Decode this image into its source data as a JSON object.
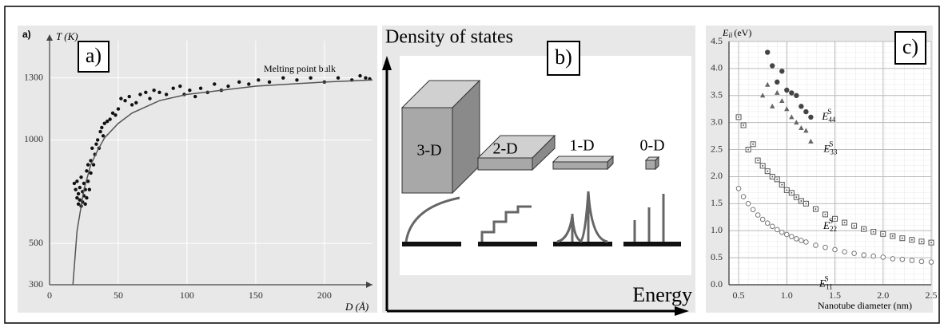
{
  "chart_data": [
    {
      "type": "scatter",
      "panel_label": "a)",
      "figure_label": "a)",
      "y_label": "T (K)",
      "x_label": "D (Å)",
      "annotation": "Melting point bulk",
      "xlim": [
        0,
        235
      ],
      "ylim": [
        300,
        1480
      ],
      "xticks": [
        0,
        50,
        100,
        150,
        200
      ],
      "yticks": [
        300,
        500,
        1000,
        1300
      ],
      "grid": true,
      "series": [
        {
          "marker": "dot",
          "color": "#111111",
          "x": [
            18,
            19,
            20,
            20,
            21,
            21,
            22,
            22,
            23,
            23,
            24,
            24,
            25,
            25,
            26,
            26,
            27,
            27,
            28,
            28,
            29,
            30,
            30,
            31,
            32,
            33,
            34,
            35,
            36,
            37,
            38,
            39,
            40,
            42,
            44,
            46,
            48,
            50,
            52,
            55,
            58,
            60,
            63,
            66,
            70,
            73,
            76,
            80,
            85,
            90,
            95,
            98,
            102,
            106,
            110,
            115,
            120,
            125,
            130,
            138,
            145,
            152,
            160,
            170,
            180,
            190,
            200,
            210,
            220,
            226,
            230,
            233
          ],
          "values": [
            790,
            760,
            720,
            800,
            740,
            690,
            770,
            710,
            680,
            820,
            750,
            700,
            790,
            730,
            760,
            690,
            720,
            850,
            800,
            880,
            760,
            900,
            840,
            960,
            880,
            930,
            980,
            1000,
            960,
            1040,
            1060,
            1020,
            1080,
            1090,
            1100,
            1130,
            1120,
            1150,
            1200,
            1190,
            1210,
            1170,
            1180,
            1220,
            1230,
            1200,
            1240,
            1230,
            1220,
            1250,
            1260,
            1220,
            1240,
            1210,
            1250,
            1230,
            1270,
            1240,
            1260,
            1280,
            1270,
            1290,
            1280,
            1300,
            1290,
            1300,
            1280,
            1300,
            1290,
            1310,
            1300,
            1295
          ]
        },
        {
          "marker": "line",
          "color": "#555555",
          "x": [
            17,
            20,
            25,
            30,
            35,
            40,
            50,
            60,
            80,
            100,
            150,
            200,
            235
          ],
          "values": [
            300,
            560,
            760,
            880,
            950,
            1010,
            1080,
            1130,
            1190,
            1220,
            1260,
            1280,
            1290
          ]
        }
      ]
    },
    {
      "type": "scatter",
      "panel_label": "c)",
      "y_label": {
        "main": "E",
        "sub": "ii",
        "unit": "(eV)"
      },
      "x_label": "Nanotube diameter (nm)",
      "xlim": [
        0.4,
        2.5
      ],
      "ylim": [
        0,
        4.5
      ],
      "xticks": [
        0.5,
        {
          "value": 1,
          "label": "1.0"
        },
        1.5,
        {
          "value": 2,
          "label": "2.0"
        },
        2.5
      ],
      "yticks": [
        {
          "value": 0,
          "label": "0.0"
        },
        0.5,
        {
          "value": 1,
          "label": "1.0"
        },
        1.5,
        {
          "value": 2,
          "label": "2.0"
        },
        2.5,
        {
          "value": 3,
          "label": "3.0"
        },
        3.5,
        {
          "value": 4,
          "label": "4.0"
        },
        4.5
      ],
      "grid": true,
      "series": [
        {
          "marker": "open-circle",
          "color": "#777777",
          "annotation": {
            "main": "E",
            "sub": "11",
            "sup": "S"
          },
          "x": [
            0.5,
            0.55,
            0.6,
            0.65,
            0.7,
            0.75,
            0.8,
            0.85,
            0.9,
            0.95,
            1.0,
            1.05,
            1.1,
            1.15,
            1.2,
            1.3,
            1.4,
            1.5,
            1.6,
            1.7,
            1.8,
            1.9,
            2.0,
            2.1,
            2.2,
            2.3,
            2.4,
            2.5
          ],
          "values": [
            1.78,
            1.63,
            1.5,
            1.39,
            1.29,
            1.21,
            1.14,
            1.08,
            1.02,
            0.97,
            0.93,
            0.89,
            0.85,
            0.82,
            0.79,
            0.73,
            0.69,
            0.65,
            0.61,
            0.58,
            0.55,
            0.53,
            0.51,
            0.48,
            0.47,
            0.45,
            0.43,
            0.42
          ]
        },
        {
          "marker": "dotted-square",
          "color": "#555555",
          "annotation": {
            "main": "E",
            "sub": "22",
            "sup": "S"
          },
          "x": [
            0.5,
            0.55,
            0.6,
            0.65,
            0.7,
            0.75,
            0.8,
            0.85,
            0.9,
            0.95,
            1.0,
            1.05,
            1.1,
            1.15,
            1.2,
            1.3,
            1.4,
            1.5,
            1.6,
            1.7,
            1.8,
            1.9,
            2.0,
            2.1,
            2.2,
            2.3,
            2.4,
            2.5
          ],
          "values": [
            3.1,
            2.95,
            2.5,
            2.6,
            2.3,
            2.2,
            2.1,
            2.0,
            1.95,
            1.85,
            1.75,
            1.7,
            1.62,
            1.55,
            1.5,
            1.4,
            1.3,
            1.22,
            1.15,
            1.09,
            1.03,
            0.98,
            0.94,
            0.9,
            0.86,
            0.83,
            0.8,
            0.78
          ]
        },
        {
          "marker": "triangle",
          "color": "#666666",
          "annotation": {
            "main": "E",
            "sub": "33",
            "sup": "S"
          },
          "x": [
            0.75,
            0.8,
            0.85,
            0.9,
            0.95,
            1.0,
            1.05,
            1.1,
            1.15,
            1.2,
            1.25
          ],
          "values": [
            3.5,
            3.7,
            3.3,
            3.55,
            3.4,
            3.25,
            3.1,
            3.0,
            2.9,
            2.85,
            2.65
          ]
        },
        {
          "marker": "filled-circle",
          "color": "#444444",
          "annotation": {
            "main": "E",
            "sub": "44",
            "sup": "S"
          },
          "x": [
            0.8,
            0.85,
            0.9,
            0.95,
            1.0,
            1.05,
            1.1,
            1.15,
            1.2,
            1.25
          ],
          "values": [
            4.3,
            4.05,
            3.75,
            3.95,
            3.6,
            3.55,
            3.5,
            3.3,
            3.2,
            3.1
          ]
        }
      ]
    }
  ],
  "diagram": {
    "panel_label": "b)",
    "y_label": "Density of states",
    "x_label": "Energy",
    "systems": [
      "3-D",
      "2-D",
      "1-D",
      "0-D"
    ]
  }
}
